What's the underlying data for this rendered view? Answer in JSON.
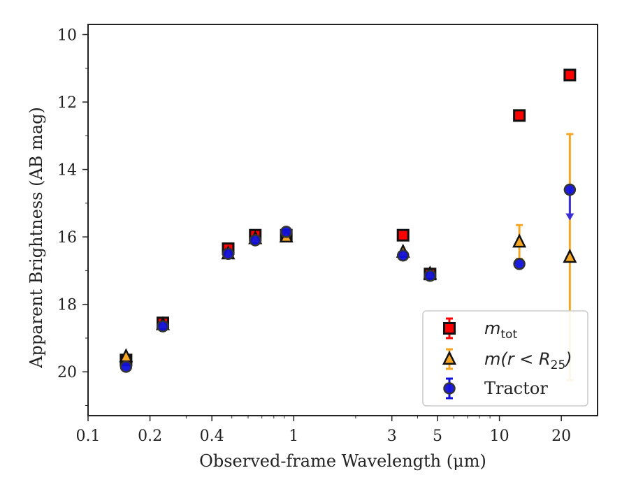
{
  "chart_data": {
    "type": "scatter",
    "xlabel": "Observed-frame Wavelength (μm)",
    "ylabel": "Apparent Brightness (AB mag)",
    "x_scale": "log",
    "xlim": [
      0.1,
      30
    ],
    "ylim": [
      21.3,
      9.7
    ],
    "y_inverted": true,
    "x_ticks": [
      0.1,
      0.2,
      0.4,
      1,
      3,
      5,
      10,
      20
    ],
    "x_tick_labels": [
      "0.1",
      "0.2",
      "0.4",
      "1",
      "3",
      "5",
      "10",
      "20"
    ],
    "y_ticks": [
      10,
      12,
      14,
      16,
      18,
      20
    ],
    "y_tick_labels": [
      "10",
      "12",
      "14",
      "16",
      "18",
      "20"
    ],
    "grid": false,
    "legend_position": "bottom-right",
    "series": [
      {
        "name": "m_tot",
        "label_main": "m",
        "label_sub": "tot",
        "marker": "square",
        "color": "#ff0000",
        "edge": "#111111",
        "points": [
          {
            "x": 0.153,
            "y": 19.65
          },
          {
            "x": 0.231,
            "y": 18.55
          },
          {
            "x": 0.48,
            "y": 16.35
          },
          {
            "x": 0.65,
            "y": 15.95
          },
          {
            "x": 0.92,
            "y": 15.95
          },
          {
            "x": 3.4,
            "y": 15.95
          },
          {
            "x": 4.6,
            "y": 17.1
          },
          {
            "x": 12.5,
            "y": 12.4
          },
          {
            "x": 22.0,
            "y": 11.2
          }
        ]
      },
      {
        "name": "m(r < R25)",
        "label_main": "m(r < R",
        "label_sub": "25",
        "label_tail": ")",
        "marker": "triangle",
        "color": "#f5a623",
        "edge": "#111111",
        "points": [
          {
            "x": 0.153,
            "y": 19.55
          },
          {
            "x": 0.231,
            "y": 18.6
          },
          {
            "x": 0.48,
            "y": 16.5
          },
          {
            "x": 0.65,
            "y": 16.05
          },
          {
            "x": 0.92,
            "y": 16.0
          },
          {
            "x": 3.4,
            "y": 16.45
          },
          {
            "x": 4.6,
            "y": 17.1
          },
          {
            "x": 12.5,
            "y": 16.15,
            "err": [
              0.5,
              0.5
            ]
          },
          {
            "x": 22.0,
            "y": 16.6,
            "err": [
              3.65,
              3.65
            ]
          }
        ]
      },
      {
        "name": "Tractor",
        "label_main": "Tractor",
        "marker": "circle",
        "color": "#1010dd",
        "edge": "#333333",
        "points": [
          {
            "x": 0.153,
            "y": 19.85
          },
          {
            "x": 0.231,
            "y": 18.65
          },
          {
            "x": 0.48,
            "y": 16.5
          },
          {
            "x": 0.65,
            "y": 16.1
          },
          {
            "x": 0.92,
            "y": 15.85
          },
          {
            "x": 3.4,
            "y": 16.55
          },
          {
            "x": 4.6,
            "y": 17.15
          },
          {
            "x": 12.5,
            "y": 16.8
          },
          {
            "x": 22.0,
            "y": 14.6,
            "upper_limit": true
          }
        ]
      }
    ]
  }
}
